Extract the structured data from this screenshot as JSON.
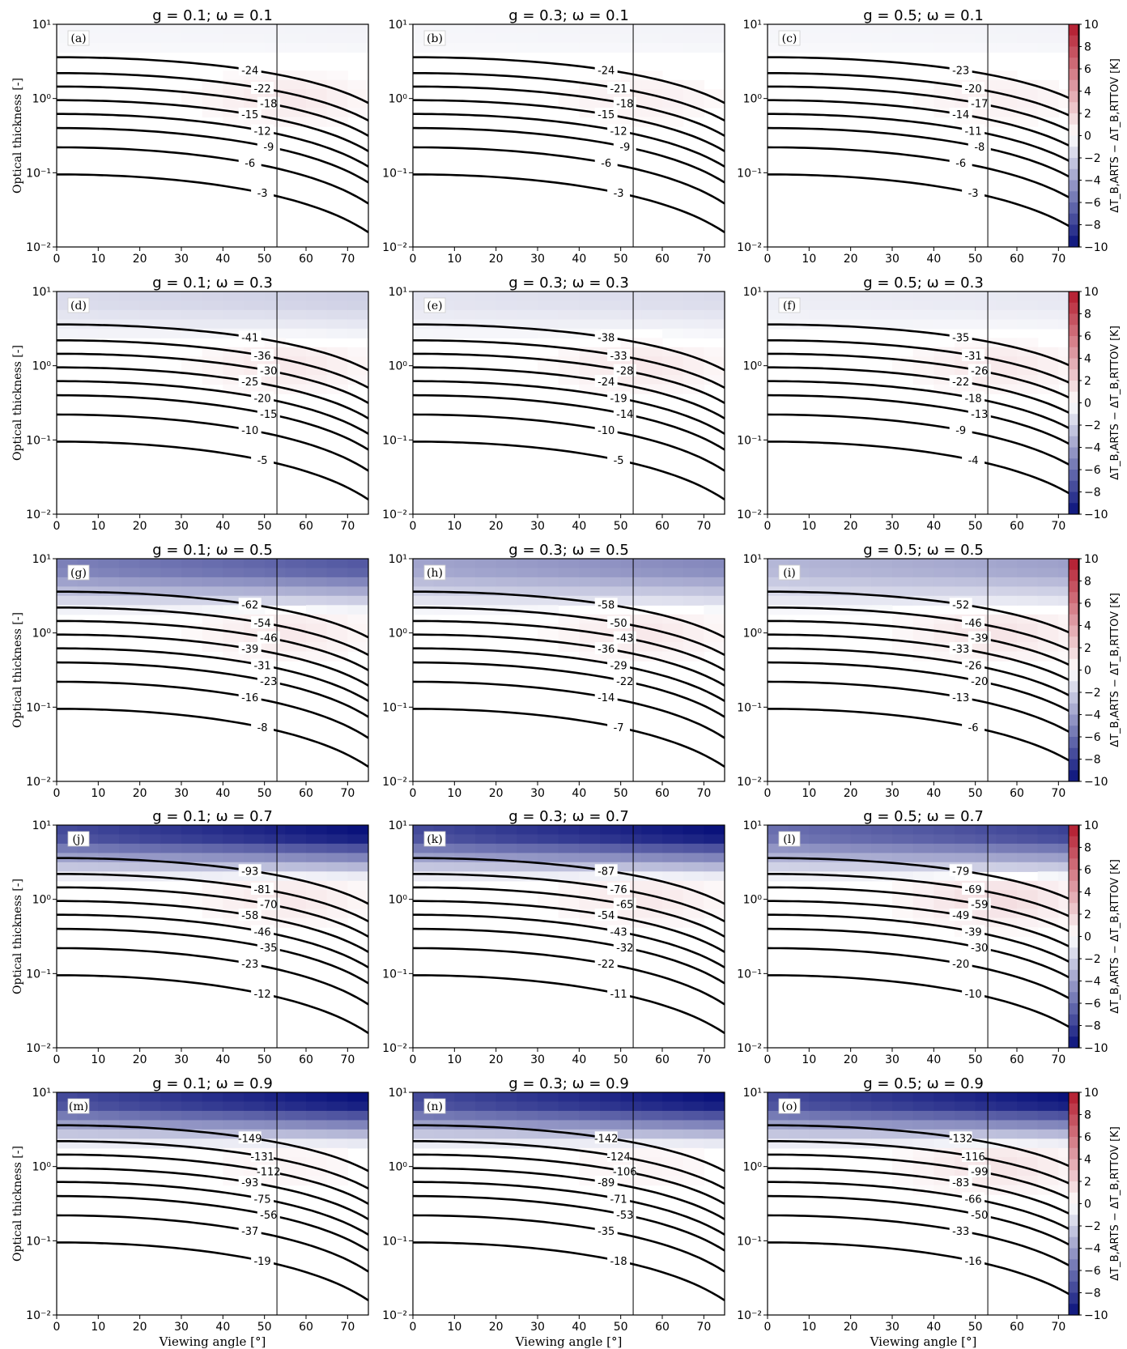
{
  "figure": {
    "y_axis_label": "Optical thickness [-]",
    "x_axis_label": "Viewing angle [°]",
    "colorbar_label": "ΔT_B,ARTS − ΔT_B,RTTOV [K]",
    "colorbar_ticks": [
      "10",
      "8",
      "6",
      "4",
      "2",
      "0",
      "−2",
      "−4",
      "−6",
      "−8",
      "−10"
    ],
    "x_ticks": [
      "0",
      "10",
      "20",
      "30",
      "40",
      "50",
      "60",
      "70"
    ],
    "y_ticks": [
      "10¹",
      "10⁰",
      "10⁻¹",
      "10⁻²"
    ],
    "colors": {
      "positive_max": "#b2182b",
      "negative_max": "#08107a",
      "zero": "#ffffff",
      "contour": "#000000"
    }
  },
  "chart_data": [
    {
      "type": "heatmap",
      "panel": "(a)",
      "title": "g = 0.1; ω = 0.1",
      "g": 0.1,
      "omega": 0.1,
      "xlim": [
        0,
        75
      ],
      "ylim": [
        0.01,
        10
      ],
      "yscale": "log",
      "reference_angle": 53,
      "contour_levels": [
        -24,
        -22,
        -18,
        -15,
        -12,
        -9,
        -6,
        -3
      ],
      "bg_min": -0.5,
      "bg_max": 1.0
    },
    {
      "type": "heatmap",
      "panel": "(b)",
      "title": "g = 0.3; ω = 0.1",
      "g": 0.3,
      "omega": 0.1,
      "xlim": [
        0,
        75
      ],
      "ylim": [
        0.01,
        10
      ],
      "yscale": "log",
      "reference_angle": 53,
      "contour_levels": [
        -24,
        -21,
        -18,
        -15,
        -12,
        -9,
        -6,
        -3
      ],
      "bg_min": -0.5,
      "bg_max": 0.7
    },
    {
      "type": "heatmap",
      "panel": "(c)",
      "title": "g = 0.5; ω = 0.1",
      "g": 0.5,
      "omega": 0.1,
      "xlim": [
        0,
        75
      ],
      "ylim": [
        0.01,
        10
      ],
      "yscale": "log",
      "reference_angle": 53,
      "contour_levels": [
        -23,
        -20,
        -17,
        -14,
        -11,
        -8,
        -6,
        -3
      ],
      "bg_min": -0.5,
      "bg_max": 0.7
    },
    {
      "type": "heatmap",
      "panel": "(d)",
      "title": "g = 0.1; ω = 0.3",
      "g": 0.1,
      "omega": 0.3,
      "xlim": [
        0,
        75
      ],
      "ylim": [
        0.01,
        10
      ],
      "yscale": "log",
      "reference_angle": 53,
      "contour_levels": [
        -41,
        -36,
        -30,
        -25,
        -20,
        -15,
        -10,
        -5
      ],
      "bg_min": -2.0,
      "bg_max": 1.0
    },
    {
      "type": "heatmap",
      "panel": "(e)",
      "title": "g = 0.3; ω = 0.3",
      "g": 0.3,
      "omega": 0.3,
      "xlim": [
        0,
        75
      ],
      "ylim": [
        0.01,
        10
      ],
      "yscale": "log",
      "reference_angle": 53,
      "contour_levels": [
        -38,
        -33,
        -28,
        -24,
        -19,
        -14,
        -10,
        -5
      ],
      "bg_min": -1.5,
      "bg_max": 1.0
    },
    {
      "type": "heatmap",
      "panel": "(f)",
      "title": "g = 0.5; ω = 0.3",
      "g": 0.5,
      "omega": 0.3,
      "xlim": [
        0,
        75
      ],
      "ylim": [
        0.01,
        10
      ],
      "yscale": "log",
      "reference_angle": 53,
      "contour_levels": [
        -35,
        -31,
        -26,
        -22,
        -18,
        -13,
        -9,
        -4
      ],
      "bg_min": -1.0,
      "bg_max": 1.0
    },
    {
      "type": "heatmap",
      "panel": "(g)",
      "title": "g = 0.1; ω = 0.5",
      "g": 0.1,
      "omega": 0.5,
      "xlim": [
        0,
        75
      ],
      "ylim": [
        0.01,
        10
      ],
      "yscale": "log",
      "reference_angle": 53,
      "contour_levels": [
        -62,
        -54,
        -46,
        -39,
        -31,
        -23,
        -16,
        -8
      ],
      "bg_min": -7.0,
      "bg_max": 1.0
    },
    {
      "type": "heatmap",
      "panel": "(h)",
      "title": "g = 0.3; ω = 0.5",
      "g": 0.3,
      "omega": 0.5,
      "xlim": [
        0,
        75
      ],
      "ylim": [
        0.01,
        10
      ],
      "yscale": "log",
      "reference_angle": 53,
      "contour_levels": [
        -58,
        -50,
        -43,
        -36,
        -29,
        -22,
        -14,
        -7
      ],
      "bg_min": -5.0,
      "bg_max": 1.0
    },
    {
      "type": "heatmap",
      "panel": "(i)",
      "title": "g = 0.5; ω = 0.5",
      "g": 0.5,
      "omega": 0.5,
      "xlim": [
        0,
        75
      ],
      "ylim": [
        0.01,
        10
      ],
      "yscale": "log",
      "reference_angle": 53,
      "contour_levels": [
        -52,
        -46,
        -39,
        -33,
        -26,
        -20,
        -13,
        -6
      ],
      "bg_min": -4.0,
      "bg_max": 1.2
    },
    {
      "type": "heatmap",
      "panel": "(j)",
      "title": "g = 0.1; ω = 0.7",
      "g": 0.1,
      "omega": 0.7,
      "xlim": [
        0,
        75
      ],
      "ylim": [
        0.01,
        10
      ],
      "yscale": "log",
      "reference_angle": 53,
      "contour_levels": [
        -93,
        -81,
        -70,
        -58,
        -46,
        -35,
        -23,
        -12
      ],
      "bg_min": -10.0,
      "bg_max": 1.0
    },
    {
      "type": "heatmap",
      "panel": "(k)",
      "title": "g = 0.3; ω = 0.7",
      "g": 0.3,
      "omega": 0.7,
      "xlim": [
        0,
        75
      ],
      "ylim": [
        0.01,
        10
      ],
      "yscale": "log",
      "reference_angle": 53,
      "contour_levels": [
        -87,
        -76,
        -65,
        -54,
        -43,
        -32,
        -22,
        -11
      ],
      "bg_min": -10.0,
      "bg_max": 1.0
    },
    {
      "type": "heatmap",
      "panel": "(l)",
      "title": "g = 0.5; ω = 0.7",
      "g": 0.5,
      "omega": 0.7,
      "xlim": [
        0,
        75
      ],
      "ylim": [
        0.01,
        10
      ],
      "yscale": "log",
      "reference_angle": 53,
      "contour_levels": [
        -79,
        -69,
        -59,
        -49,
        -39,
        -30,
        -20,
        -10
      ],
      "bg_min": -8.0,
      "bg_max": 1.5
    },
    {
      "type": "heatmap",
      "panel": "(m)",
      "title": "g = 0.1; ω = 0.9",
      "g": 0.1,
      "omega": 0.9,
      "xlim": [
        0,
        75
      ],
      "ylim": [
        0.01,
        10
      ],
      "yscale": "log",
      "reference_angle": 53,
      "contour_levels": [
        -149,
        -131,
        -112,
        -93,
        -75,
        -56,
        -37,
        -19
      ],
      "bg_min": -10.0,
      "bg_max": 0.5
    },
    {
      "type": "heatmap",
      "panel": "(n)",
      "title": "g = 0.3; ω = 0.9",
      "g": 0.3,
      "omega": 0.9,
      "xlim": [
        0,
        75
      ],
      "ylim": [
        0.01,
        10
      ],
      "yscale": "log",
      "reference_angle": 53,
      "contour_levels": [
        -142,
        -124,
        -106,
        -89,
        -71,
        -53,
        -35,
        -18
      ],
      "bg_min": -10.0,
      "bg_max": 0.5
    },
    {
      "type": "heatmap",
      "panel": "(o)",
      "title": "g = 0.5; ω = 0.9",
      "g": 0.5,
      "omega": 0.9,
      "xlim": [
        0,
        75
      ],
      "ylim": [
        0.01,
        10
      ],
      "yscale": "log",
      "reference_angle": 53,
      "contour_levels": [
        -132,
        -116,
        -99,
        -83,
        -66,
        -50,
        -33,
        -16
      ],
      "bg_min": -10.0,
      "bg_max": 1.2
    }
  ]
}
